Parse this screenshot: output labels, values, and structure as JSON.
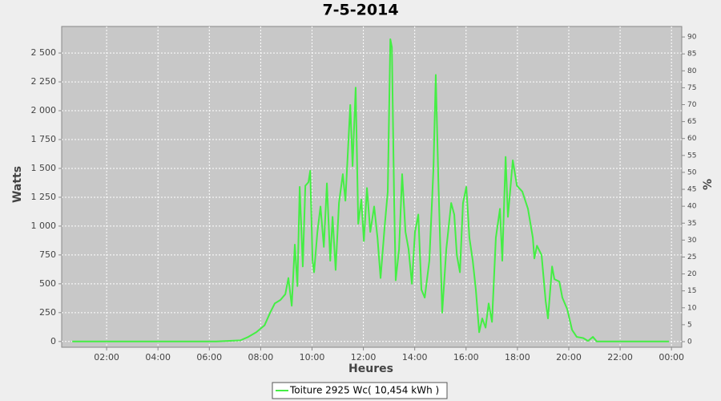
{
  "chart_data": {
    "type": "line",
    "title": "7-5-2014",
    "x_label": "Heures",
    "y_label": "Watts",
    "y2_label": "%",
    "grid": true,
    "legend": "bottom",
    "xlim": [
      0.25,
      24.4
    ],
    "xticks": [
      {
        "value": 2,
        "label": "02:00"
      },
      {
        "value": 4,
        "label": "04:00"
      },
      {
        "value": 6,
        "label": "06:00"
      },
      {
        "value": 8,
        "label": "08:00"
      },
      {
        "value": 10,
        "label": "10:00"
      },
      {
        "value": 12,
        "label": "12:00"
      },
      {
        "value": 14,
        "label": "14:00"
      },
      {
        "value": 16,
        "label": "16:00"
      },
      {
        "value": 18,
        "label": "18:00"
      },
      {
        "value": 20,
        "label": "20:00"
      },
      {
        "value": 22,
        "label": "22:00"
      },
      {
        "value": 24,
        "label": "00:00"
      }
    ],
    "ylim": [
      -50,
      2730
    ],
    "yticks": [
      0,
      250,
      500,
      750,
      {
        "value": 1000,
        "label": "1 000"
      },
      {
        "value": 1250,
        "label": "1 250"
      },
      {
        "value": 1500,
        "label": "1 500"
      },
      {
        "value": 1750,
        "label": "1 750"
      },
      {
        "value": 2000,
        "label": "2 000"
      },
      {
        "value": 2250,
        "label": "2 250"
      },
      {
        "value": 2500,
        "label": "2 500"
      }
    ],
    "y2lim": [
      -1.66,
      93.1
    ],
    "y2ticks": [
      0,
      5,
      10,
      15,
      20,
      25,
      30,
      35,
      40,
      45,
      50,
      55,
      60,
      65,
      70,
      75,
      80,
      85,
      90
    ],
    "x": [
      0.66,
      6.27,
      7.21,
      7.52,
      7.83,
      8.15,
      8.37,
      8.55,
      8.77,
      8.96,
      9.08,
      9.21,
      9.33,
      9.43,
      9.52,
      9.64,
      9.74,
      9.86,
      9.93,
      10.02,
      10.08,
      10.21,
      10.33,
      10.46,
      10.58,
      10.71,
      10.8,
      10.92,
      11.05,
      11.2,
      11.3,
      11.49,
      11.58,
      11.7,
      11.8,
      11.92,
      12.02,
      12.14,
      12.27,
      12.42,
      12.55,
      12.67,
      12.83,
      12.95,
      13.05,
      13.11,
      13.2,
      13.26,
      13.39,
      13.51,
      13.64,
      13.76,
      13.89,
      14.01,
      14.14,
      14.26,
      14.39,
      14.57,
      14.73,
      14.82,
      14.92,
      15.07,
      15.23,
      15.42,
      15.54,
      15.64,
      15.76,
      15.88,
      16.01,
      16.13,
      16.26,
      16.38,
      16.51,
      16.63,
      16.76,
      16.88,
      17.01,
      17.16,
      17.32,
      17.41,
      17.54,
      17.63,
      17.82,
      17.98,
      18.19,
      18.41,
      18.6,
      18.66,
      18.76,
      18.94,
      19.1,
      19.19,
      19.35,
      19.44,
      19.63,
      19.75,
      19.94,
      20.13,
      20.31,
      20.56,
      20.75,
      20.94,
      21.09,
      23.9
    ],
    "series": [
      {
        "name": "Toiture 2925 Wc( 10,454 kWh )",
        "color": "#44ee44",
        "values": [
          0,
          0,
          10,
          40,
          80,
          140,
          250,
          330,
          360,
          410,
          550,
          310,
          840,
          480,
          1340,
          650,
          1350,
          1380,
          1480,
          700,
          600,
          950,
          1170,
          820,
          1370,
          700,
          1080,
          620,
          1200,
          1450,
          1220,
          2050,
          1520,
          2200,
          1020,
          1230,
          870,
          1330,
          950,
          1170,
          900,
          550,
          1000,
          1300,
          2620,
          2550,
          1200,
          530,
          800,
          1450,
          950,
          800,
          500,
          950,
          1100,
          450,
          380,
          700,
          1500,
          2310,
          1400,
          250,
          800,
          1200,
          1100,
          750,
          600,
          1200,
          1340,
          900,
          700,
          450,
          80,
          200,
          120,
          330,
          170,
          900,
          1150,
          700,
          1600,
          1080,
          1570,
          1350,
          1300,
          1150,
          900,
          720,
          830,
          750,
          350,
          200,
          650,
          540,
          520,
          380,
          280,
          100,
          40,
          30,
          5,
          40,
          0,
          0
        ]
      }
    ]
  }
}
